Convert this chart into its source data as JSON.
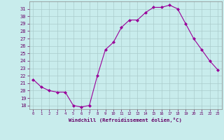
{
  "x": [
    0,
    1,
    2,
    3,
    4,
    5,
    6,
    7,
    8,
    9,
    10,
    11,
    12,
    13,
    14,
    15,
    16,
    17,
    18,
    19,
    20,
    21,
    22,
    23
  ],
  "y": [
    21.5,
    20.5,
    20.0,
    19.8,
    19.8,
    18.0,
    17.8,
    18.0,
    22.0,
    25.5,
    26.5,
    28.5,
    29.5,
    29.5,
    30.5,
    31.2,
    31.2,
    31.5,
    31.0,
    29.0,
    27.0,
    25.5,
    24.0,
    22.8
  ],
  "line_color": "#990099",
  "marker": "D",
  "marker_size": 2.0,
  "bg_color": "#c8ecec",
  "grid_color": "#aacccc",
  "xlabel": "Windchill (Refroidissement éolien,°C)",
  "xlabel_color": "#660066",
  "tick_color": "#660066",
  "ylim": [
    17.5,
    32.0
  ],
  "yticks": [
    18,
    19,
    20,
    21,
    22,
    23,
    24,
    25,
    26,
    27,
    28,
    29,
    30,
    31
  ],
  "xlim": [
    -0.5,
    23.5
  ],
  "xticks": [
    0,
    1,
    2,
    3,
    4,
    5,
    6,
    7,
    8,
    9,
    10,
    11,
    12,
    13,
    14,
    15,
    16,
    17,
    18,
    19,
    20,
    21,
    22,
    23
  ]
}
